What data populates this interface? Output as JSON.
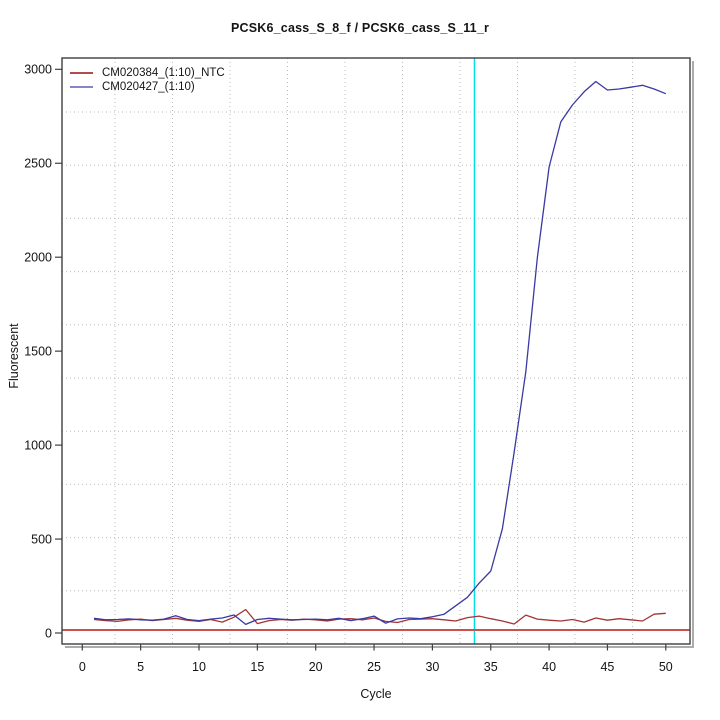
{
  "title": "PCSK6_cass_S_8_f / PCSK6_cass_S_11_r",
  "legend": {
    "items": [
      {
        "label": "CM020384_(1:10)_NTC",
        "swatch_color": "#b24c4c"
      },
      {
        "label": "CM020427_(1:10)",
        "swatch_color": "#8585c8"
      }
    ]
  },
  "axes": {
    "x": {
      "label": "Cycle",
      "ticks": [
        0,
        5,
        10,
        15,
        20,
        25,
        30,
        35,
        40,
        45,
        50
      ]
    },
    "y": {
      "label": "Fluorescent",
      "ticks": [
        0,
        500,
        1000,
        1500,
        2000,
        2500,
        3000
      ]
    }
  },
  "chart_data": {
    "type": "line",
    "title": "PCSK6_cass_S_8_f / PCSK6_cass_S_11_r",
    "xlabel": "Cycle",
    "ylabel": "Fluorescent",
    "xlim": [
      -1.7,
      52.1
    ],
    "ylim": [
      -59,
      3060
    ],
    "x_ticks": [
      0,
      5,
      10,
      15,
      20,
      25,
      30,
      35,
      40,
      45,
      50
    ],
    "y_ticks": [
      0,
      500,
      1000,
      1500,
      2000,
      2500,
      3000
    ],
    "grid": {
      "style": "dotted",
      "color": "#bcbcbc"
    },
    "x": [
      1,
      2,
      3,
      4,
      5,
      6,
      7,
      8,
      9,
      10,
      11,
      12,
      13,
      14,
      15,
      16,
      17,
      18,
      19,
      20,
      21,
      22,
      23,
      24,
      25,
      26,
      27,
      28,
      29,
      30,
      31,
      32,
      33,
      34,
      35,
      36,
      37,
      38,
      39,
      40,
      41,
      42,
      43,
      44,
      45,
      46,
      47,
      48,
      49,
      50
    ],
    "series": [
      {
        "name": "CM020384_(1:10)_NTC",
        "color": "#a23535",
        "values": [
          72,
          66,
          62,
          70,
          74,
          66,
          72,
          78,
          68,
          62,
          72,
          58,
          84,
          125,
          50,
          66,
          72,
          68,
          74,
          70,
          64,
          74,
          76,
          70,
          80,
          62,
          56,
          72,
          74,
          76,
          70,
          64,
          82,
          90,
          76,
          64,
          48,
          95,
          74,
          68,
          64,
          72,
          58,
          80,
          68,
          76,
          70,
          64,
          100,
          105
        ]
      },
      {
        "name": "CM020427_(1:10)",
        "color": "#3939a3",
        "values": [
          78,
          70,
          72,
          75,
          70,
          68,
          74,
          92,
          72,
          66,
          74,
          80,
          96,
          46,
          72,
          78,
          74,
          70,
          72,
          74,
          70,
          78,
          66,
          76,
          90,
          52,
          75,
          80,
          76,
          86,
          100,
          145,
          190,
          265,
          330,
          555,
          960,
          1390,
          2000,
          2480,
          2720,
          2810,
          2880,
          2935,
          2890,
          2895,
          2905,
          2915,
          2895,
          2870
        ]
      }
    ],
    "threshold_line": {
      "y": 16,
      "color": "#c85252"
    },
    "crossing_line": {
      "x": 33.6,
      "color": "#00dfe8"
    }
  }
}
